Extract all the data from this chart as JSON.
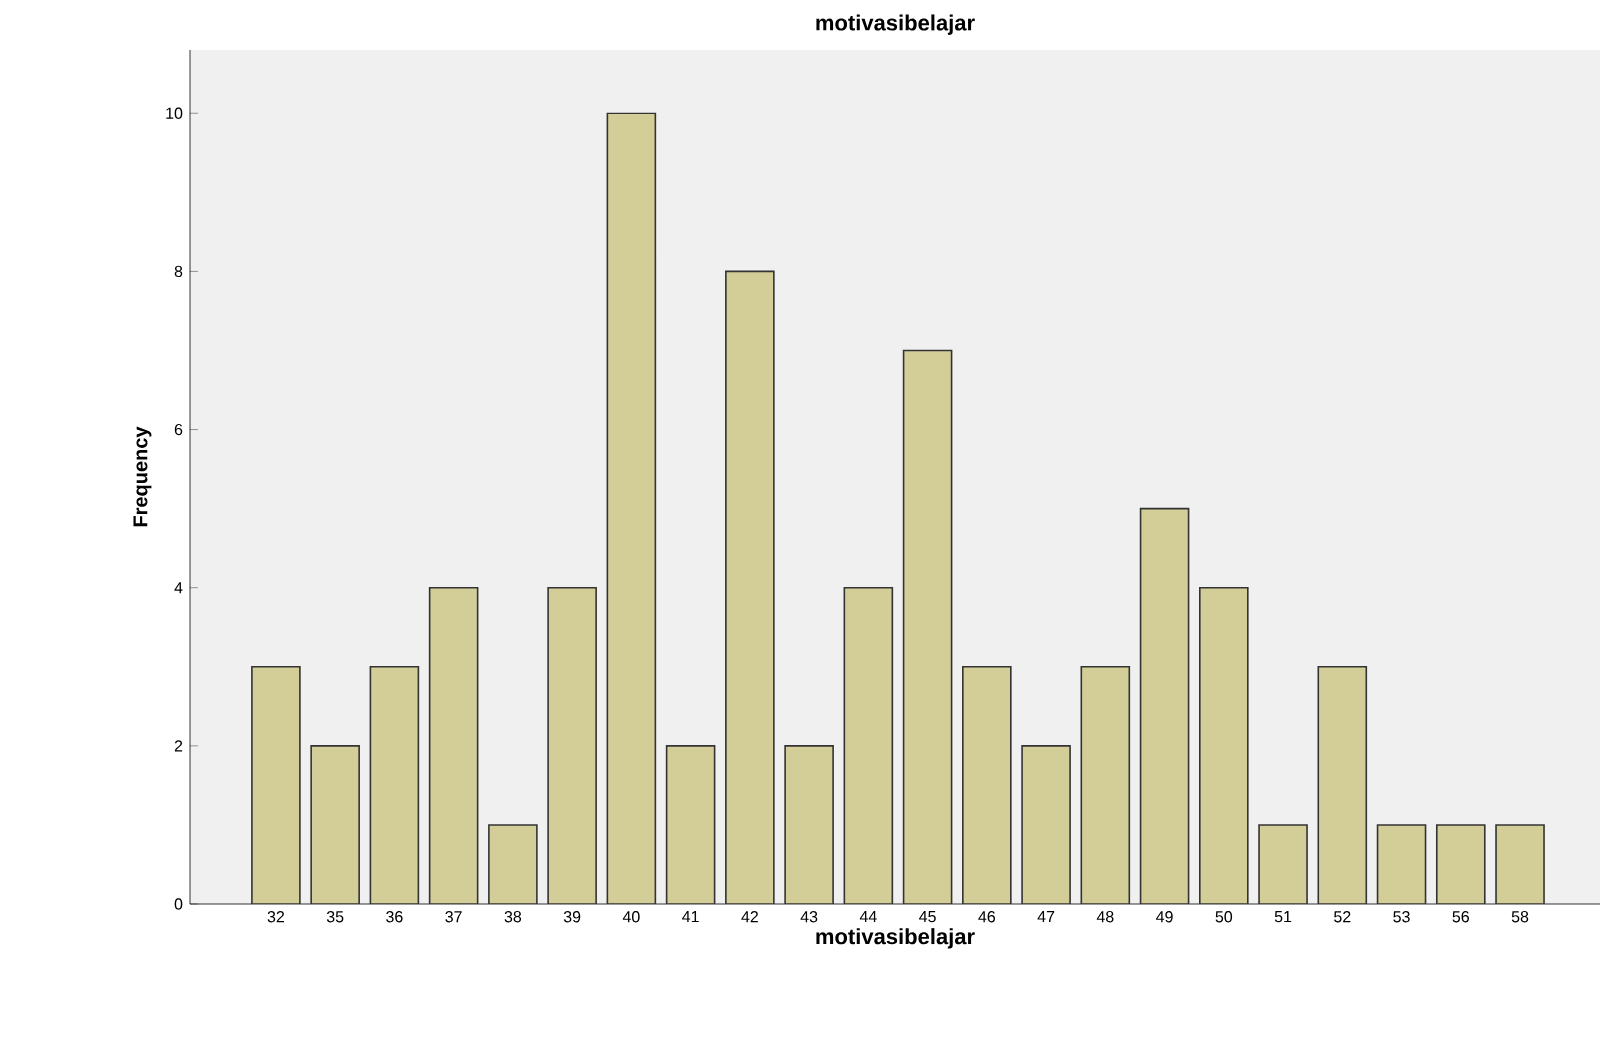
{
  "chart_data": {
    "type": "bar",
    "title": "motivasibelajar",
    "xlabel": "motivasibelajar",
    "ylabel": "Frequency",
    "categories": [
      "32",
      "35",
      "36",
      "37",
      "38",
      "39",
      "40",
      "41",
      "42",
      "43",
      "44",
      "45",
      "46",
      "47",
      "48",
      "49",
      "50",
      "51",
      "52",
      "53",
      "56",
      "58"
    ],
    "values": [
      3,
      2,
      3,
      4,
      1,
      4,
      10,
      2,
      8,
      2,
      4,
      7,
      3,
      2,
      3,
      5,
      4,
      1,
      3,
      1,
      1,
      1
    ],
    "color": "#d3ce97",
    "ylim": [
      0,
      10.8
    ],
    "yticks": [
      0,
      2,
      4,
      6,
      8,
      10
    ],
    "grid": false
  }
}
